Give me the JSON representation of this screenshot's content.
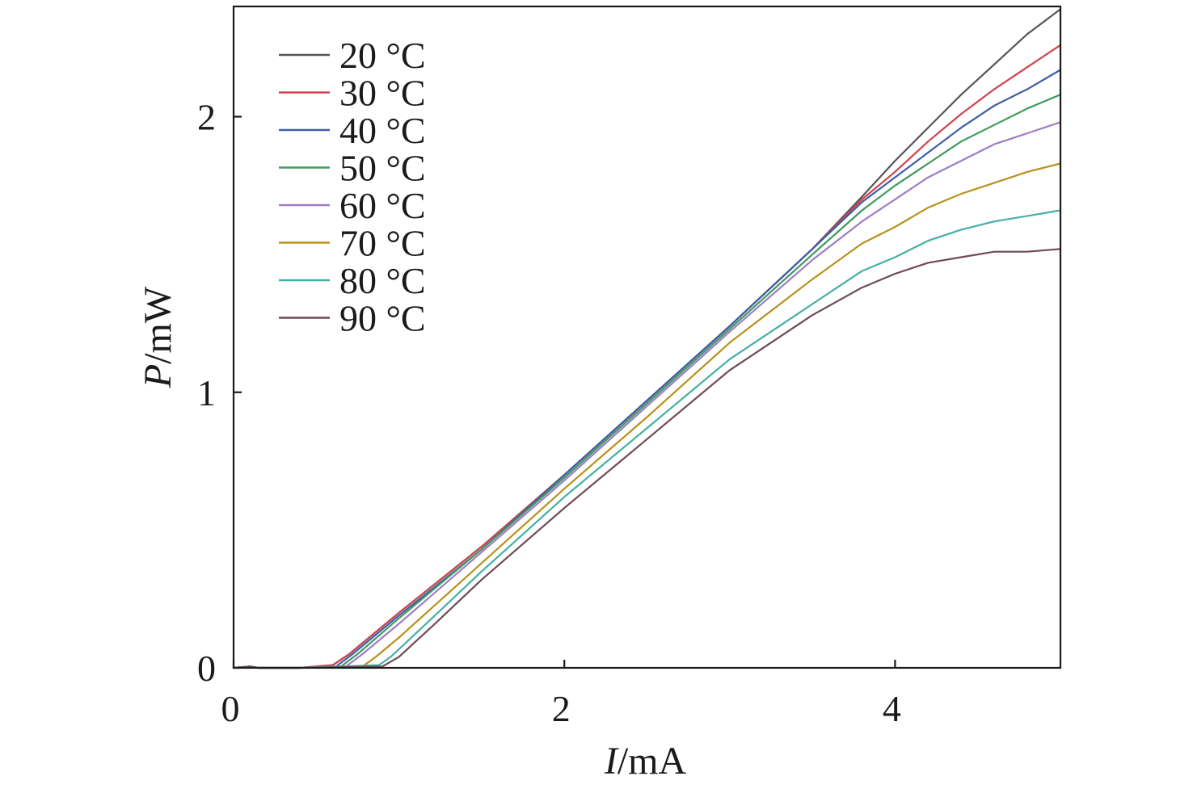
{
  "chart_data": {
    "type": "line",
    "title": "",
    "xlabel_italic": "I",
    "xlabel_unit": "/mA",
    "ylabel_italic": "P",
    "ylabel_unit": "/mW",
    "xlim": [
      0,
      5
    ],
    "ylim": [
      0,
      2.4
    ],
    "x_ticks": [
      0,
      2,
      4
    ],
    "x_tick_labels": [
      "0",
      "2",
      "4"
    ],
    "y_ticks": [
      0,
      1,
      2
    ],
    "y_tick_labels": [
      "0",
      "1",
      "2"
    ],
    "grid": false,
    "legend_position": "top-left",
    "series": [
      {
        "name": "20 °C",
        "color": "#555555",
        "points": [
          [
            0,
            0
          ],
          [
            0.1,
            0.005
          ],
          [
            0.15,
            0
          ],
          [
            0.4,
            0
          ],
          [
            0.6,
            0.01
          ],
          [
            0.7,
            0.05
          ],
          [
            1.0,
            0.2
          ],
          [
            1.5,
            0.44
          ],
          [
            2.0,
            0.7
          ],
          [
            2.5,
            0.97
          ],
          [
            3.0,
            1.24
          ],
          [
            3.5,
            1.52
          ],
          [
            3.8,
            1.71
          ],
          [
            4.0,
            1.84
          ],
          [
            4.2,
            1.96
          ],
          [
            4.4,
            2.08
          ],
          [
            4.6,
            2.19
          ],
          [
            4.8,
            2.3
          ],
          [
            5.0,
            2.39
          ]
        ]
      },
      {
        "name": "30 °C",
        "color": "#d0434f",
        "points": [
          [
            0,
            0
          ],
          [
            0.1,
            0.005
          ],
          [
            0.15,
            0
          ],
          [
            0.4,
            0
          ],
          [
            0.6,
            0.01
          ],
          [
            0.7,
            0.05
          ],
          [
            1.0,
            0.2
          ],
          [
            1.5,
            0.44
          ],
          [
            2.0,
            0.7
          ],
          [
            2.5,
            0.97
          ],
          [
            3.0,
            1.24
          ],
          [
            3.5,
            1.52
          ],
          [
            3.8,
            1.7
          ],
          [
            4.0,
            1.8
          ],
          [
            4.2,
            1.91
          ],
          [
            4.4,
            2.01
          ],
          [
            4.6,
            2.1
          ],
          [
            4.8,
            2.18
          ],
          [
            5.0,
            2.26
          ]
        ]
      },
      {
        "name": "40 °C",
        "color": "#3d5ea7",
        "points": [
          [
            0,
            0
          ],
          [
            0.1,
            0.005
          ],
          [
            0.15,
            0
          ],
          [
            0.4,
            0
          ],
          [
            0.62,
            0.005
          ],
          [
            0.72,
            0.05
          ],
          [
            1.0,
            0.19
          ],
          [
            1.5,
            0.43
          ],
          [
            2.0,
            0.7
          ],
          [
            2.5,
            0.97
          ],
          [
            3.0,
            1.24
          ],
          [
            3.5,
            1.52
          ],
          [
            3.8,
            1.69
          ],
          [
            4.0,
            1.78
          ],
          [
            4.2,
            1.87
          ],
          [
            4.4,
            1.96
          ],
          [
            4.6,
            2.04
          ],
          [
            4.8,
            2.1
          ],
          [
            5.0,
            2.17
          ]
        ]
      },
      {
        "name": "50 °C",
        "color": "#3f9a5e",
        "points": [
          [
            0,
            0
          ],
          [
            0.1,
            0.005
          ],
          [
            0.15,
            0
          ],
          [
            0.4,
            0
          ],
          [
            0.65,
            0.005
          ],
          [
            0.75,
            0.05
          ],
          [
            1.0,
            0.18
          ],
          [
            1.5,
            0.43
          ],
          [
            2.0,
            0.69
          ],
          [
            2.5,
            0.96
          ],
          [
            3.0,
            1.23
          ],
          [
            3.5,
            1.5
          ],
          [
            3.8,
            1.66
          ],
          [
            4.0,
            1.75
          ],
          [
            4.2,
            1.83
          ],
          [
            4.4,
            1.91
          ],
          [
            4.6,
            1.97
          ],
          [
            4.8,
            2.03
          ],
          [
            5.0,
            2.08
          ]
        ]
      },
      {
        "name": "60 °C",
        "color": "#a07cc5",
        "points": [
          [
            0,
            0
          ],
          [
            0.1,
            0.005
          ],
          [
            0.15,
            0
          ],
          [
            0.4,
            0
          ],
          [
            0.68,
            0.005
          ],
          [
            0.78,
            0.05
          ],
          [
            1.0,
            0.16
          ],
          [
            1.5,
            0.42
          ],
          [
            2.0,
            0.68
          ],
          [
            2.5,
            0.95
          ],
          [
            3.0,
            1.22
          ],
          [
            3.5,
            1.48
          ],
          [
            3.8,
            1.62
          ],
          [
            4.0,
            1.7
          ],
          [
            4.2,
            1.78
          ],
          [
            4.4,
            1.84
          ],
          [
            4.6,
            1.9
          ],
          [
            4.8,
            1.94
          ],
          [
            5.0,
            1.98
          ]
        ]
      },
      {
        "name": "70 °C",
        "color": "#b8921c",
        "points": [
          [
            0,
            0
          ],
          [
            0.1,
            0.005
          ],
          [
            0.15,
            0
          ],
          [
            0.4,
            0
          ],
          [
            0.78,
            0.005
          ],
          [
            0.86,
            0.04
          ],
          [
            1.0,
            0.11
          ],
          [
            1.5,
            0.38
          ],
          [
            2.0,
            0.65
          ],
          [
            2.5,
            0.91
          ],
          [
            3.0,
            1.18
          ],
          [
            3.5,
            1.41
          ],
          [
            3.8,
            1.54
          ],
          [
            4.0,
            1.6
          ],
          [
            4.2,
            1.67
          ],
          [
            4.4,
            1.72
          ],
          [
            4.6,
            1.76
          ],
          [
            4.8,
            1.8
          ],
          [
            5.0,
            1.83
          ]
        ]
      },
      {
        "name": "80 °C",
        "color": "#45b0a5",
        "points": [
          [
            0,
            0
          ],
          [
            0.1,
            0.005
          ],
          [
            0.15,
            0
          ],
          [
            0.4,
            0
          ],
          [
            0.88,
            0.01
          ],
          [
            0.95,
            0.04
          ],
          [
            1.2,
            0.18
          ],
          [
            1.5,
            0.35
          ],
          [
            2.0,
            0.62
          ],
          [
            2.5,
            0.87
          ],
          [
            3.0,
            1.12
          ],
          [
            3.5,
            1.32
          ],
          [
            3.8,
            1.44
          ],
          [
            4.0,
            1.49
          ],
          [
            4.2,
            1.55
          ],
          [
            4.4,
            1.59
          ],
          [
            4.6,
            1.62
          ],
          [
            4.8,
            1.64
          ],
          [
            5.0,
            1.66
          ]
        ]
      },
      {
        "name": "90 °C",
        "color": "#6f4a58",
        "points": [
          [
            0,
            0
          ],
          [
            0.1,
            0.005
          ],
          [
            0.15,
            0
          ],
          [
            0.4,
            0
          ],
          [
            0.9,
            0.005
          ],
          [
            1.0,
            0.04
          ],
          [
            1.2,
            0.15
          ],
          [
            1.5,
            0.32
          ],
          [
            2.0,
            0.58
          ],
          [
            2.5,
            0.83
          ],
          [
            3.0,
            1.08
          ],
          [
            3.5,
            1.28
          ],
          [
            3.8,
            1.38
          ],
          [
            4.0,
            1.43
          ],
          [
            4.2,
            1.47
          ],
          [
            4.4,
            1.49
          ],
          [
            4.6,
            1.51
          ],
          [
            4.8,
            1.51
          ],
          [
            5.0,
            1.52
          ]
        ]
      }
    ]
  }
}
